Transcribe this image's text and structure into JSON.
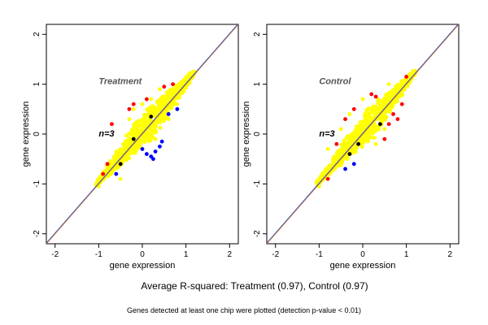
{
  "chart_data": [
    {
      "type": "scatter",
      "title": "Treatment",
      "annotation": "n=3",
      "xlabel": "gene expression",
      "ylabel": "gene expression",
      "xlim": [
        -2.2,
        2.2
      ],
      "ylim": [
        -2.2,
        2.2
      ],
      "xticks": [
        -2,
        -1,
        0,
        1,
        2
      ],
      "yticks": [
        -2,
        -1,
        0,
        1,
        2
      ],
      "grid": false,
      "legend": "none",
      "reference_lines": [
        {
          "slope": 1,
          "intercept": 0,
          "color": "#ff6600"
        },
        {
          "slope": 1,
          "intercept": 0,
          "color": "#3366cc"
        }
      ],
      "series": [
        {
          "color": "#ffff00",
          "points": [
            [
              -1.0,
              -1.05
            ],
            [
              -0.9,
              -0.92
            ],
            [
              -0.8,
              -0.7
            ],
            [
              -0.7,
              -0.78
            ],
            [
              -0.6,
              -0.55
            ],
            [
              -0.5,
              -0.45
            ],
            [
              -0.4,
              -0.42
            ],
            [
              -0.3,
              -0.2
            ],
            [
              -0.2,
              -0.25
            ],
            [
              -0.1,
              -0.05
            ],
            [
              0.0,
              0.05
            ],
            [
              0.1,
              0.12
            ],
            [
              0.2,
              0.18
            ],
            [
              0.3,
              0.35
            ],
            [
              0.4,
              0.38
            ],
            [
              0.5,
              0.55
            ],
            [
              0.6,
              0.6
            ],
            [
              0.7,
              0.72
            ],
            [
              0.8,
              0.85
            ],
            [
              0.9,
              0.95
            ],
            [
              1.0,
              1.0
            ],
            [
              -0.3,
              0.3
            ],
            [
              0.2,
              0.7
            ],
            [
              0.4,
              0.9
            ],
            [
              0.0,
              0.6
            ],
            [
              -0.2,
              0.5
            ],
            [
              0.6,
              0.3
            ],
            [
              0.3,
              -0.1
            ],
            [
              0.8,
              0.6
            ],
            [
              -0.5,
              -0.9
            ]
          ]
        },
        {
          "color": "#ff0000",
          "points": [
            [
              -0.7,
              0.2
            ],
            [
              -0.3,
              0.5
            ],
            [
              -0.9,
              -0.8
            ],
            [
              0.1,
              0.7
            ],
            [
              -0.2,
              0.6
            ],
            [
              0.7,
              1.0
            ],
            [
              -0.8,
              -0.6
            ],
            [
              0.5,
              0.95
            ]
          ]
        },
        {
          "color": "#0000ff",
          "points": [
            [
              0.1,
              -0.4
            ],
            [
              0.3,
              -0.35
            ],
            [
              0.2,
              -0.45
            ],
            [
              0.4,
              -0.25
            ],
            [
              0.0,
              -0.3
            ],
            [
              -0.6,
              -0.8
            ],
            [
              0.6,
              0.4
            ],
            [
              0.8,
              0.5
            ],
            [
              0.45,
              -0.15
            ],
            [
              0.25,
              -0.5
            ]
          ]
        },
        {
          "color": "#000000",
          "points": [
            [
              -0.5,
              -0.6
            ],
            [
              0.2,
              0.35
            ],
            [
              -0.2,
              -0.1
            ]
          ]
        }
      ]
    },
    {
      "type": "scatter",
      "title": "Control",
      "annotation": "n=3",
      "xlabel": "gene expression",
      "ylabel": "gene expression",
      "xlim": [
        -2.2,
        2.2
      ],
      "ylim": [
        -2.2,
        2.2
      ],
      "xticks": [
        -2,
        -1,
        0,
        1,
        2
      ],
      "yticks": [
        -2,
        -1,
        0,
        1,
        2
      ],
      "grid": false,
      "legend": "none",
      "reference_lines": [
        {
          "slope": 1,
          "intercept": 0,
          "color": "#ff6600"
        },
        {
          "slope": 1,
          "intercept": 0,
          "color": "#3366cc"
        }
      ],
      "series": [
        {
          "color": "#ffff00",
          "points": [
            [
              -1.0,
              -1.05
            ],
            [
              -0.9,
              -0.85
            ],
            [
              -0.8,
              -0.75
            ],
            [
              -0.7,
              -0.65
            ],
            [
              -0.6,
              -0.6
            ],
            [
              -0.5,
              -0.45
            ],
            [
              -0.4,
              -0.35
            ],
            [
              -0.3,
              -0.3
            ],
            [
              -0.2,
              -0.15
            ],
            [
              -0.1,
              -0.1
            ],
            [
              0.0,
              0.05
            ],
            [
              0.1,
              0.1
            ],
            [
              0.2,
              0.25
            ],
            [
              0.3,
              0.3
            ],
            [
              0.4,
              0.45
            ],
            [
              0.5,
              0.5
            ],
            [
              0.6,
              0.65
            ],
            [
              0.7,
              0.7
            ],
            [
              0.8,
              0.8
            ],
            [
              0.9,
              0.95
            ],
            [
              1.0,
              1.05
            ],
            [
              -0.3,
              0.4
            ],
            [
              0.0,
              0.7
            ],
            [
              -0.5,
              0.1
            ],
            [
              0.5,
              0.1
            ],
            [
              0.3,
              -0.2
            ],
            [
              -0.8,
              -0.3
            ],
            [
              0.6,
              1.0
            ]
          ]
        },
        {
          "color": "#ff0000",
          "points": [
            [
              -0.6,
              -0.2
            ],
            [
              -0.4,
              0.3
            ],
            [
              0.6,
              0.2
            ],
            [
              0.7,
              0.4
            ],
            [
              0.8,
              0.3
            ],
            [
              -0.8,
              -0.9
            ],
            [
              0.2,
              0.8
            ],
            [
              0.9,
              0.6
            ],
            [
              -0.2,
              0.5
            ],
            [
              0.5,
              -0.1
            ],
            [
              1.0,
              1.15
            ],
            [
              0.3,
              0.75
            ]
          ]
        },
        {
          "color": "#0000ff",
          "points": [
            [
              -0.2,
              -0.6
            ],
            [
              -0.4,
              -0.7
            ]
          ]
        },
        {
          "color": "#000000",
          "points": [
            [
              -0.3,
              -0.4
            ],
            [
              0.4,
              0.2
            ],
            [
              -0.1,
              -0.2
            ]
          ]
        }
      ]
    }
  ],
  "caption": "Average R-squared: Treatment (0.97), Control (0.97)",
  "footnote": "Genes detected at least one chip were plotted (detection p-value < 0.01)"
}
